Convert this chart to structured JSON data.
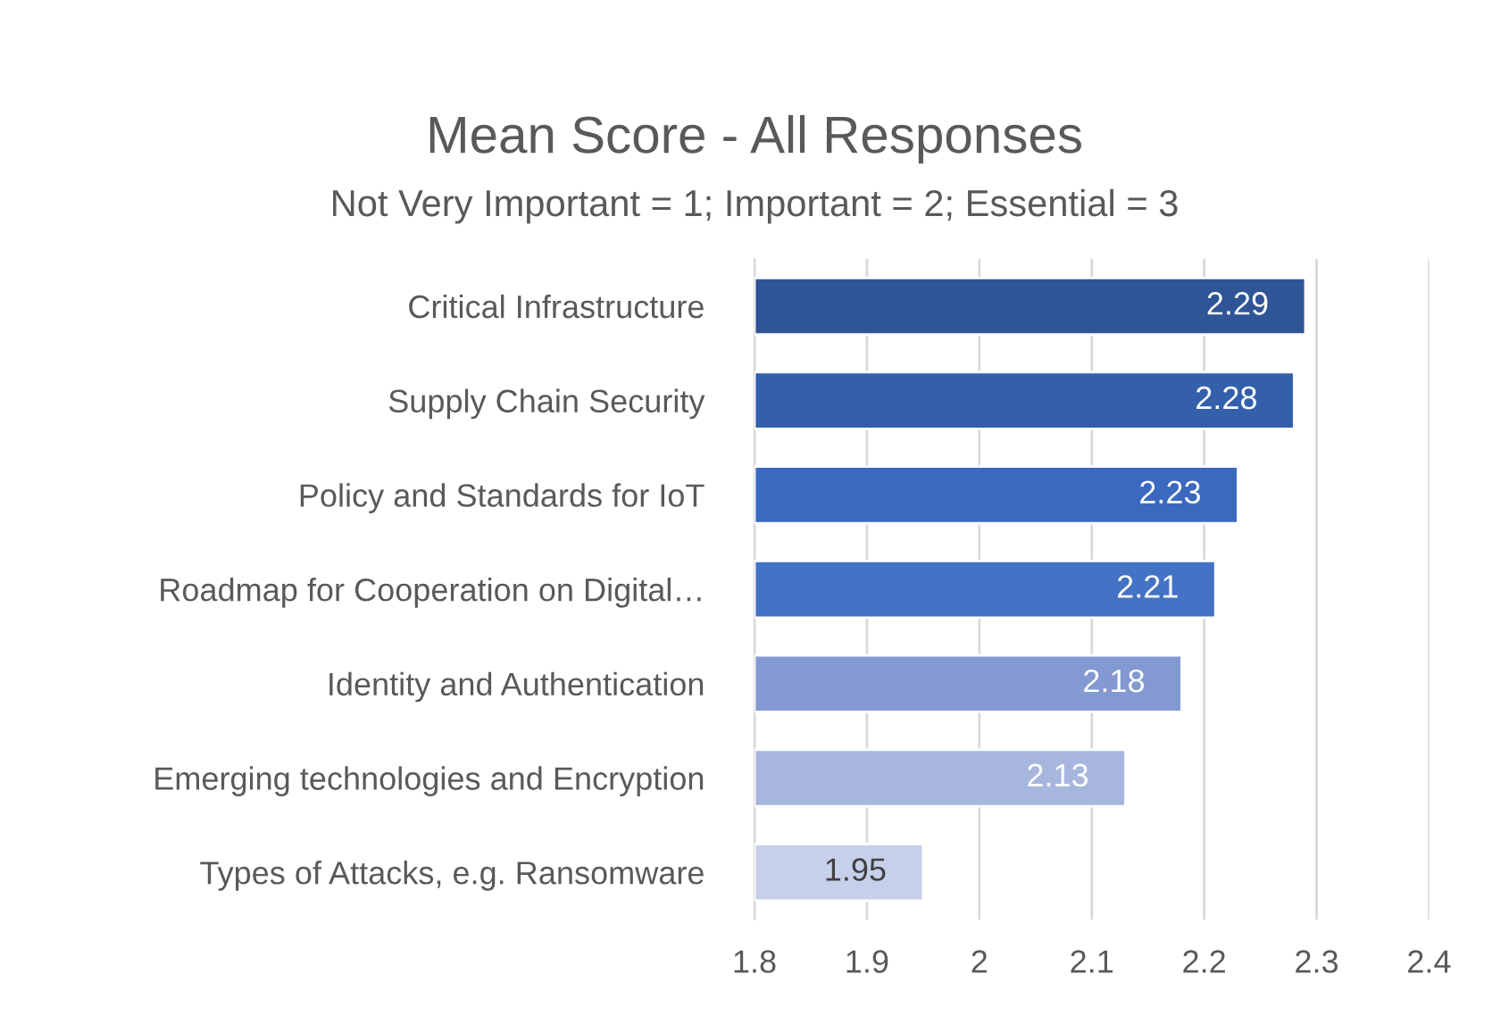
{
  "chart_data": {
    "type": "bar",
    "orientation": "horizontal",
    "title": "Mean Score - All Responses",
    "subtitle": "Not Very Important = 1; Important = 2; Essential = 3",
    "categories": [
      "Critical Infrastructure",
      "Supply Chain Security",
      "Policy and Standards for IoT",
      "Roadmap for Cooperation on Digital…",
      "Identity and Authentication",
      "Emerging technologies and Encryption",
      "Types of Attacks, e.g. Ransomware"
    ],
    "values": [
      2.29,
      2.28,
      2.23,
      2.21,
      2.18,
      2.13,
      1.95
    ],
    "colors": [
      "#2f5597",
      "#3460ab",
      "#3a69bf",
      "#4472c4",
      "#8399d1",
      "#a7b6dd",
      "#c6d0ea"
    ],
    "xlim": [
      1.8,
      2.4
    ],
    "xticks": [
      1.8,
      1.9,
      2,
      2.1,
      2.2,
      2.3,
      2.4
    ],
    "grid": "x",
    "data_labels": true,
    "legend": false
  }
}
